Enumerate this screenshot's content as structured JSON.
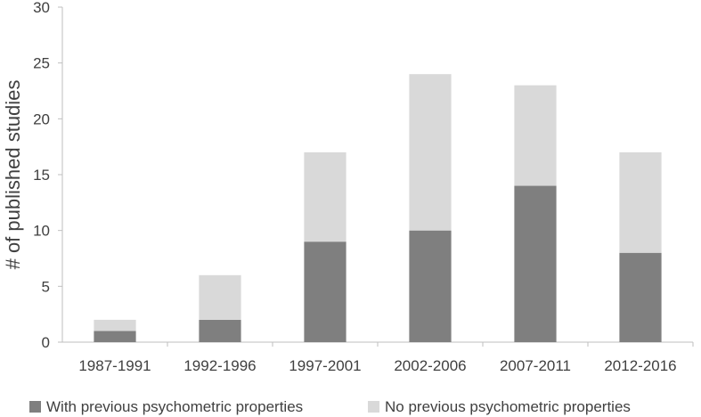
{
  "chart_data": {
    "type": "bar",
    "stacked": true,
    "title": "",
    "xlabel": "",
    "ylabel": "# of published studies",
    "ylim": [
      0,
      30
    ],
    "yticks": [
      0,
      5,
      10,
      15,
      20,
      25,
      30
    ],
    "grid": false,
    "legend": "bottom",
    "categories": [
      "1987-1991",
      "1992-1996",
      "1997-2001",
      "2002-2006",
      "2007-2011",
      "2012-2016"
    ],
    "series": [
      {
        "name": "With previous psychometric properties",
        "color": "#7f7f7f",
        "values": [
          1,
          2,
          9,
          10,
          14,
          8
        ]
      },
      {
        "name": "No previous psychometric properties",
        "color": "#d9d9d9",
        "values": [
          1,
          4,
          8,
          14,
          9,
          9
        ]
      }
    ]
  }
}
